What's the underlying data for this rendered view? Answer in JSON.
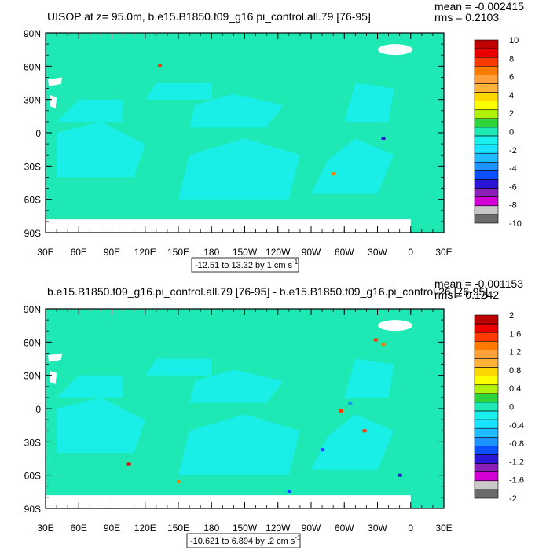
{
  "panels": [
    {
      "title": "UISOP at z=  95.0m, b.e15.B1850.f09_g16.pi_control.all.79 [76-95]",
      "mean_text": "mean = -0.002415",
      "rms_text": "rms = 0.2103",
      "range_text": "-12.51 to 13.32 by 1 cm s",
      "range_sup": "-1"
    },
    {
      "title": "b.e15.B1850.f09_g16.pi_control.all.79 [76-95] - b.e15.B1850.f09_g16.pi_control.26 [76-95]",
      "mean_text": "mean = -0.001153",
      "rms_text": "rms = 0.1242",
      "range_text": "-10.621 to 6.894 by .2 cm s",
      "range_sup": "-1"
    }
  ],
  "colors": {
    "ocean_main": "#1ee8b4",
    "ocean_alt": "#19f0ee",
    "land": "#ffffff"
  },
  "chart_data": [
    {
      "type": "heatmap",
      "title": "UISOP at z=  95.0m, b.e15.B1850.f09_g16.pi_control.all.79 [76-95]",
      "x_ticks": [
        "30E",
        "60E",
        "90E",
        "120E",
        "150E",
        "180",
        "150W",
        "120W",
        "90W",
        "60W",
        "30W",
        "0",
        "30E"
      ],
      "y_ticks": [
        "90N",
        "60N",
        "30N",
        "0",
        "30S",
        "60S",
        "90S"
      ],
      "xlim": [
        30,
        390
      ],
      "ylim": [
        -90,
        90
      ],
      "colorbar": {
        "labels": [
          "10",
          "8",
          "6",
          "4",
          "2",
          "0",
          "-2",
          "-4",
          "-6",
          "-8",
          "-10"
        ],
        "colors": [
          "#bd0000",
          "#ea0000",
          "#ff3a00",
          "#ff7b00",
          "#ffa03a",
          "#ffb33b",
          "#ffd700",
          "#fcff00",
          "#aef20a",
          "#2fd43a",
          "#1ee8b4",
          "#19f0ee",
          "#19e3ff",
          "#1fbdff",
          "#1d93ff",
          "#0a50ff",
          "#2b15d6",
          "#8a20b8",
          "#d300d3",
          "#c9c9c9",
          "#6b6b6b"
        ]
      },
      "stats": {
        "mean": -0.002415,
        "rms": 0.2103
      },
      "contour_range": {
        "min": -12.51,
        "max": 13.32,
        "interval": 1,
        "units": "cm s-1"
      }
    },
    {
      "type": "heatmap",
      "title": "b.e15.B1850.f09_g16.pi_control.all.79 [76-95] - b.e15.B1850.f09_g16.pi_control.26 [76-95]",
      "x_ticks": [
        "30E",
        "60E",
        "90E",
        "120E",
        "150E",
        "180",
        "150W",
        "120W",
        "90W",
        "60W",
        "30W",
        "0",
        "30E"
      ],
      "y_ticks": [
        "90N",
        "60N",
        "30N",
        "0",
        "30S",
        "60S",
        "90S"
      ],
      "xlim": [
        30,
        390
      ],
      "ylim": [
        -90,
        90
      ],
      "colorbar": {
        "labels": [
          "2",
          "1.6",
          "1.2",
          "0.8",
          "0.4",
          "0",
          "-0.4",
          "-0.8",
          "-1.2",
          "-1.6",
          "-2"
        ],
        "colors": [
          "#bd0000",
          "#ea0000",
          "#ff3a00",
          "#ff7b00",
          "#ffa03a",
          "#ffb33b",
          "#ffd700",
          "#fcff00",
          "#aef20a",
          "#2fd43a",
          "#1ee8b4",
          "#19f0ee",
          "#19e3ff",
          "#1fbdff",
          "#1d93ff",
          "#0a50ff",
          "#2b15d6",
          "#8a20b8",
          "#d300d3",
          "#c9c9c9",
          "#6b6b6b"
        ]
      },
      "stats": {
        "mean": -0.001153,
        "rms": 0.1242
      },
      "contour_range": {
        "min": -10.621,
        "max": 6.894,
        "interval": 0.2,
        "units": "cm s-1"
      }
    }
  ]
}
